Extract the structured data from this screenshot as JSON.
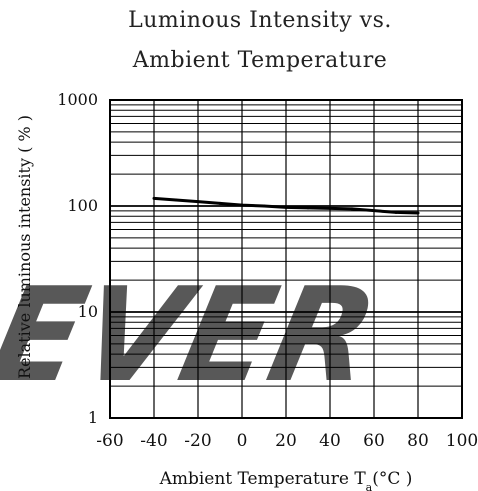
{
  "chart_data": {
    "type": "line",
    "title": [
      "Luminous Intensity vs.",
      "Ambient Temperature"
    ],
    "xlabel": "Ambient Temperature T",
    "xlabel_subscript": "a",
    "xlabel_unit": "(°C )",
    "ylabel": "Relative luminous intensity ( % )",
    "xlim": [
      -60,
      100
    ],
    "ylim": [
      1,
      1000
    ],
    "yscale": "log",
    "x_ticks": [
      -60,
      -40,
      -20,
      0,
      20,
      40,
      60,
      80,
      100
    ],
    "y_ticks": [
      1,
      10,
      100,
      1000
    ],
    "grid": true,
    "series": [
      {
        "x": [
          -40,
          -30,
          -20,
          -10,
          0,
          10,
          20,
          30,
          40,
          50,
          70,
          80
        ],
        "y": [
          118,
          114,
          110,
          106,
          102,
          100,
          97,
          96,
          95,
          94,
          87,
          86
        ]
      }
    ],
    "series_color": "#000000"
  },
  "watermark": {
    "text": "EVER",
    "color": "#cfe0f2"
  }
}
